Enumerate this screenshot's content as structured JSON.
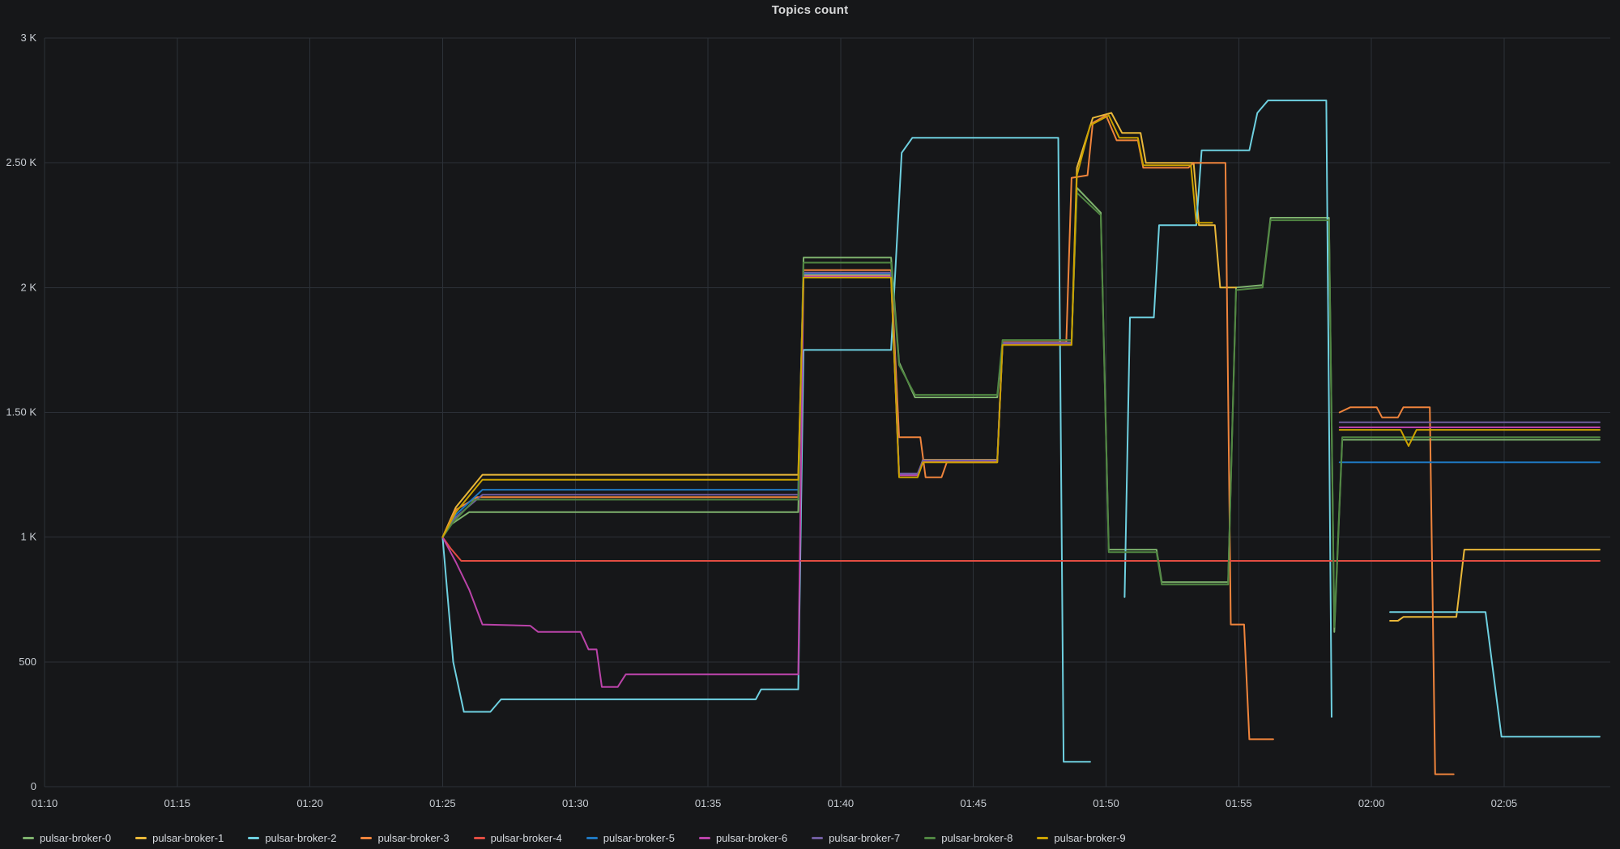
{
  "panel": {
    "title": "Topics count"
  },
  "colors": {
    "background": "#161719",
    "grid": "#2c3138",
    "axis_text": "#c7ccd2",
    "title_text": "#d8d9da",
    "legend_text": "#d5d9de"
  },
  "chart_data": {
    "type": "line",
    "title": "Topics count",
    "xlabel": "",
    "ylabel": "",
    "grid": true,
    "legend_position": "bottom",
    "x_range_minutes": [
      70,
      129
    ],
    "ylim": [
      0,
      3000
    ],
    "x_ticks": [
      "01:10",
      "01:15",
      "01:20",
      "01:25",
      "01:30",
      "01:35",
      "01:40",
      "01:45",
      "01:50",
      "01:55",
      "02:00",
      "02:05"
    ],
    "x_tick_minutes": [
      70,
      75,
      80,
      85,
      90,
      95,
      100,
      105,
      110,
      115,
      120,
      125
    ],
    "y_ticks": [
      0,
      500,
      1000,
      1500,
      2000,
      2500,
      3000
    ],
    "y_tick_labels": [
      "0",
      "500",
      "1 K",
      "1.50 K",
      "2 K",
      "2.50 K",
      "3 K"
    ],
    "series": [
      {
        "name": "pulsar-broker-0",
        "color": "#7EB26D",
        "segments": [
          [
            [
              85,
              1000
            ],
            [
              85.3,
              1050
            ],
            [
              86,
              1100
            ],
            [
              98.4,
              1100
            ],
            [
              98.6,
              2120
            ],
            [
              101.9,
              2120
            ],
            [
              102.2,
              1700
            ],
            [
              102.8,
              1560
            ],
            [
              105.9,
              1560
            ],
            [
              106.1,
              1780
            ],
            [
              108.7,
              1780
            ],
            [
              108.9,
              2400
            ],
            [
              109.8,
              2300
            ],
            [
              110.1,
              950
            ],
            [
              111.9,
              950
            ],
            [
              112.1,
              820
            ],
            [
              114.6,
              820
            ],
            [
              114.9,
              2000
            ],
            [
              115.9,
              2010
            ],
            [
              116.2,
              2280
            ],
            [
              118.4,
              2280
            ],
            [
              118.6,
              620
            ],
            [
              118.9,
              1390
            ],
            [
              128.6,
              1390
            ]
          ]
        ]
      },
      {
        "name": "pulsar-broker-1",
        "color": "#EAB839",
        "segments": [
          [
            [
              85,
              1000
            ],
            [
              85.5,
              1120
            ],
            [
              86.5,
              1250
            ],
            [
              98.4,
              1250
            ],
            [
              98.6,
              2050
            ],
            [
              101.9,
              2050
            ],
            [
              102.2,
              1250
            ],
            [
              102.9,
              1250
            ],
            [
              103.1,
              1310
            ],
            [
              105.9,
              1310
            ],
            [
              106.1,
              1780
            ],
            [
              108.7,
              1780
            ],
            [
              108.9,
              2480
            ],
            [
              109.5,
              2680
            ],
            [
              110.2,
              2700
            ],
            [
              110.6,
              2620
            ],
            [
              111.3,
              2620
            ],
            [
              111.5,
              2500
            ],
            [
              113.3,
              2500
            ],
            [
              113.5,
              2250
            ],
            [
              114.1,
              2250
            ],
            [
              114.3,
              2000
            ],
            [
              114.9,
              2000
            ]
          ],
          [
            [
              120.7,
              665
            ],
            [
              121,
              665
            ],
            [
              121.2,
              680
            ],
            [
              123.2,
              680
            ],
            [
              123.5,
              950
            ],
            [
              128.6,
              950
            ]
          ]
        ]
      },
      {
        "name": "pulsar-broker-2",
        "color": "#6ED0E0",
        "segments": [
          [
            [
              85,
              1000
            ],
            [
              85.4,
              500
            ],
            [
              85.8,
              300
            ],
            [
              86.8,
              300
            ],
            [
              87.2,
              350
            ],
            [
              96.8,
              350
            ],
            [
              97,
              390
            ],
            [
              98.4,
              390
            ],
            [
              98.6,
              1750
            ],
            [
              101.9,
              1750
            ],
            [
              102.3,
              2540
            ],
            [
              102.7,
              2600
            ],
            [
              108.2,
              2600
            ],
            [
              108.4,
              100
            ],
            [
              109.4,
              100
            ]
          ],
          [
            [
              110.7,
              760
            ],
            [
              110.9,
              1880
            ],
            [
              111.8,
              1880
            ],
            [
              112,
              2250
            ],
            [
              113.4,
              2250
            ],
            [
              113.6,
              2550
            ],
            [
              115.4,
              2550
            ],
            [
              115.7,
              2700
            ],
            [
              116.1,
              2750
            ],
            [
              118.3,
              2750
            ],
            [
              118.5,
              280
            ]
          ],
          [
            [
              120.7,
              700
            ],
            [
              124.3,
              700
            ],
            [
              124.9,
              200
            ],
            [
              128.6,
              200
            ]
          ]
        ]
      },
      {
        "name": "pulsar-broker-3",
        "color": "#EF843C",
        "segments": [
          [
            [
              85,
              1000
            ],
            [
              85.5,
              1110
            ],
            [
              86.3,
              1160
            ],
            [
              98.4,
              1160
            ],
            [
              98.6,
              2070
            ],
            [
              101.9,
              2070
            ],
            [
              102.2,
              1400
            ],
            [
              103,
              1400
            ],
            [
              103.2,
              1240
            ],
            [
              103.8,
              1240
            ],
            [
              104,
              1300
            ],
            [
              105.9,
              1300
            ],
            [
              106.1,
              1782
            ],
            [
              108.5,
              1782
            ],
            [
              108.7,
              2440
            ],
            [
              109.3,
              2450
            ],
            [
              109.5,
              2660
            ],
            [
              110,
              2690
            ],
            [
              110.4,
              2590
            ],
            [
              111.2,
              2590
            ],
            [
              111.4,
              2480
            ],
            [
              113.1,
              2480
            ],
            [
              113.3,
              2500
            ],
            [
              114.5,
              2500
            ],
            [
              114.7,
              650
            ],
            [
              115.2,
              650
            ],
            [
              115.4,
              190
            ],
            [
              116.3,
              190
            ]
          ],
          [
            [
              118.8,
              1500
            ],
            [
              119.2,
              1520
            ],
            [
              120.2,
              1520
            ],
            [
              120.4,
              1480
            ],
            [
              121,
              1480
            ],
            [
              121.2,
              1520
            ],
            [
              122.2,
              1520
            ],
            [
              122.4,
              50
            ],
            [
              123.1,
              50
            ]
          ]
        ]
      },
      {
        "name": "pulsar-broker-4",
        "color": "#E24D42",
        "segments": [
          [
            [
              85,
              1000
            ],
            [
              85.3,
              955
            ],
            [
              85.7,
              905
            ],
            [
              128.6,
              905
            ]
          ]
        ]
      },
      {
        "name": "pulsar-broker-5",
        "color": "#1F78C1",
        "segments": [
          [
            [
              85,
              1000
            ],
            [
              85.5,
              1090
            ],
            [
              86.5,
              1190
            ],
            [
              98.4,
              1190
            ],
            [
              98.6,
              2055
            ],
            [
              101.9,
              2055
            ],
            [
              102.2,
              1252
            ],
            [
              102.9,
              1252
            ],
            [
              103.1,
              1307
            ],
            [
              105.9,
              1307
            ],
            [
              106.1,
              1777
            ],
            [
              108.7,
              1777
            ]
          ],
          [
            [
              118.8,
              1300
            ],
            [
              128.6,
              1300
            ]
          ]
        ]
      },
      {
        "name": "pulsar-broker-6",
        "color": "#BA43A9",
        "segments": [
          [
            [
              85,
              1000
            ],
            [
              85.5,
              900
            ],
            [
              86,
              790
            ],
            [
              86.5,
              650
            ],
            [
              88.3,
              645
            ],
            [
              88.6,
              620
            ],
            [
              90.2,
              620
            ],
            [
              90.5,
              550
            ],
            [
              90.8,
              550
            ],
            [
              91,
              400
            ],
            [
              91.6,
              400
            ],
            [
              91.9,
              450
            ],
            [
              98.4,
              450
            ],
            [
              98.6,
              2045
            ],
            [
              101.9,
              2045
            ],
            [
              102.2,
              1248
            ],
            [
              102.9,
              1248
            ],
            [
              103.1,
              1302
            ],
            [
              105.9,
              1302
            ],
            [
              106.1,
              1772
            ],
            [
              108.7,
              1772
            ]
          ],
          [
            [
              118.8,
              1440
            ],
            [
              128.6,
              1440
            ]
          ]
        ]
      },
      {
        "name": "pulsar-broker-7",
        "color": "#705DA0",
        "segments": [
          [
            [
              85,
              1000
            ],
            [
              85.5,
              1080
            ],
            [
              86.5,
              1170
            ],
            [
              98.4,
              1170
            ],
            [
              98.6,
              2060
            ],
            [
              101.9,
              2060
            ],
            [
              102.2,
              1255
            ],
            [
              102.9,
              1255
            ],
            [
              103.1,
              1308
            ],
            [
              105.9,
              1308
            ],
            [
              106.1,
              1779
            ],
            [
              108.7,
              1779
            ]
          ],
          [
            [
              118.8,
              1460
            ],
            [
              128.6,
              1460
            ]
          ]
        ]
      },
      {
        "name": "pulsar-broker-8",
        "color": "#508642",
        "segments": [
          [
            [
              85,
              1000
            ],
            [
              85.4,
              1060
            ],
            [
              86.2,
              1150
            ],
            [
              98.4,
              1150
            ],
            [
              98.6,
              2100
            ],
            [
              101.9,
              2100
            ],
            [
              102.2,
              1690
            ],
            [
              102.8,
              1570
            ],
            [
              105.9,
              1570
            ],
            [
              106.1,
              1790
            ],
            [
              108.7,
              1790
            ],
            [
              108.9,
              2380
            ],
            [
              109.8,
              2290
            ],
            [
              110.1,
              940
            ],
            [
              111.9,
              940
            ],
            [
              112.1,
              810
            ],
            [
              114.6,
              810
            ],
            [
              114.9,
              1990
            ],
            [
              115.9,
              2000
            ],
            [
              116.2,
              2270
            ],
            [
              118.4,
              2270
            ],
            [
              118.6,
              640
            ],
            [
              118.9,
              1400
            ],
            [
              128.6,
              1400
            ]
          ]
        ]
      },
      {
        "name": "pulsar-broker-9",
        "color": "#CCA300",
        "segments": [
          [
            [
              85,
              1000
            ],
            [
              85.5,
              1100
            ],
            [
              86.5,
              1230
            ],
            [
              98.4,
              1230
            ],
            [
              98.6,
              2040
            ],
            [
              101.9,
              2040
            ],
            [
              102.2,
              1240
            ],
            [
              102.9,
              1240
            ],
            [
              103.1,
              1300
            ],
            [
              105.9,
              1300
            ],
            [
              106.1,
              1770
            ],
            [
              108.7,
              1770
            ],
            [
              108.9,
              2450
            ],
            [
              109.4,
              2650
            ],
            [
              110.1,
              2690
            ],
            [
              110.5,
              2600
            ],
            [
              111.2,
              2600
            ],
            [
              111.4,
              2490
            ],
            [
              113.2,
              2490
            ],
            [
              113.4,
              2260
            ],
            [
              114,
              2260
            ]
          ],
          [
            [
              118.8,
              1430
            ],
            [
              121.1,
              1430
            ],
            [
              121.4,
              1365
            ],
            [
              121.7,
              1430
            ],
            [
              128.6,
              1430
            ]
          ]
        ]
      }
    ]
  }
}
